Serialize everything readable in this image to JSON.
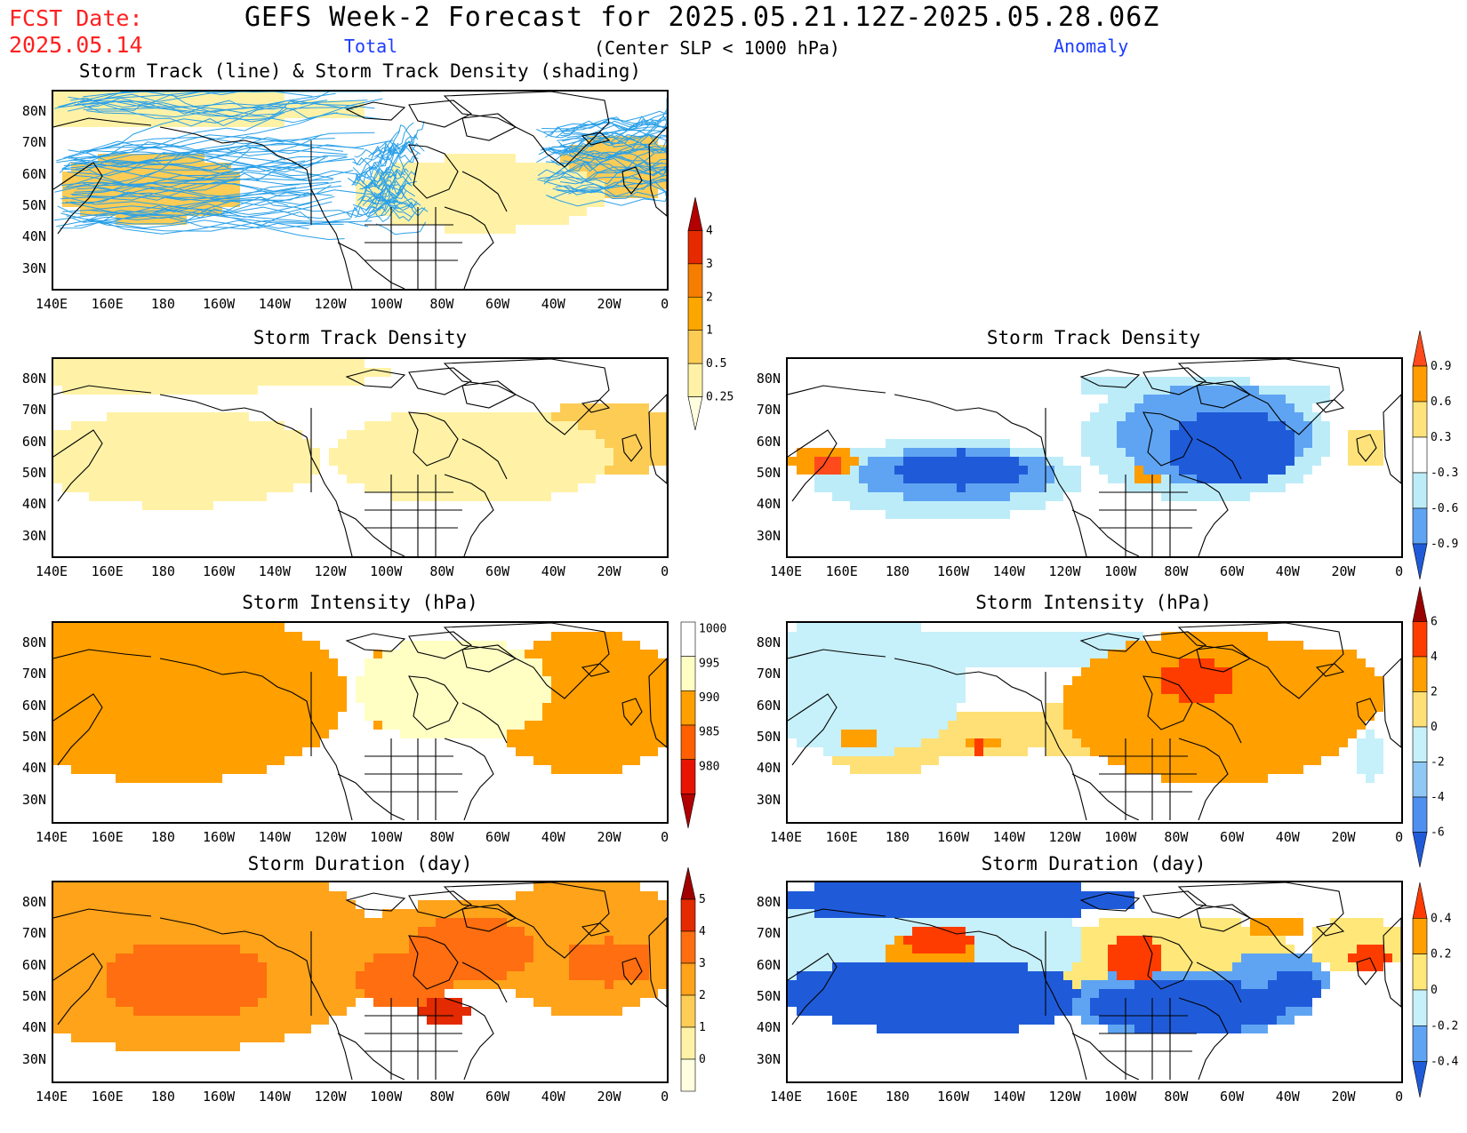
{
  "header": {
    "fcst_label": "FCST Date:",
    "fcst_date": "2025.05.14",
    "title": "GEFS Week-2 Forecast for 2025.05.21.12Z-2025.05.28.06Z",
    "criterion": "(Center SLP < 1000 hPa)",
    "total_label": "Total",
    "anomaly_label": "Anomaly"
  },
  "axes": {
    "lat_labels": [
      "80N",
      "70N",
      "60N",
      "50N",
      "40N",
      "30N"
    ],
    "lon_labels": [
      "140E",
      "160E",
      "180",
      "160W",
      "140W",
      "120W",
      "100W",
      "80W",
      "60W",
      "40W",
      "20W",
      "0"
    ]
  },
  "panels": {
    "track": {
      "title": "Storm Track (line) & Storm Track Density (shading)"
    },
    "density_total": {
      "title": "Storm Track Density"
    },
    "density_anom": {
      "title": "Storm Track Density"
    },
    "intensity_total": {
      "title": "Storm Intensity (hPa)"
    },
    "intensity_anom": {
      "title": "Storm Intensity (hPa)"
    },
    "duration_total": {
      "title": "Storm Duration (day)"
    },
    "duration_anom": {
      "title": "Storm Duration (day)"
    }
  },
  "colorbars": {
    "density_total": {
      "ticks": [
        "4",
        "3",
        "2",
        "1",
        "0.5",
        "0.25"
      ],
      "colors": [
        "#b20000",
        "#e52a00",
        "#f57e00",
        "#fca600",
        "#fccc55",
        "#fff2a6",
        "#ffffe0"
      ]
    },
    "density_anom": {
      "ticks": [
        "0.9",
        "0.6",
        "0.3",
        "-0.3",
        "-0.6",
        "-0.9"
      ],
      "colors": [
        "#ff4a1c",
        "#ff9d00",
        "#ffe37a",
        "#ffffff",
        "#bdecf9",
        "#5fa4f2",
        "#1f5bd9"
      ]
    },
    "intensity_total": {
      "ticks": [
        "1000",
        "995",
        "990",
        "985",
        "980"
      ],
      "colors": [
        "#ffffff",
        "#ffffc4",
        "#ff9f00",
        "#ff5f00",
        "#e61400",
        "#b00000"
      ]
    },
    "intensity_anom": {
      "ticks": [
        "6",
        "4",
        "2",
        "0",
        "-2",
        "-4",
        "-6"
      ],
      "colors": [
        "#990000",
        "#ff3c00",
        "#ff9f00",
        "#ffe077",
        "#c6f0fa",
        "#8fc8f5",
        "#4f8ff0",
        "#1f5bd9"
      ]
    },
    "duration_total": {
      "ticks": [
        "5",
        "4",
        "3",
        "2",
        "1",
        "0"
      ],
      "colors": [
        "#a00000",
        "#e32a00",
        "#ff6e10",
        "#ffa31a",
        "#ffcd55",
        "#fff2a6",
        "#ffffe0"
      ]
    },
    "duration_anom": {
      "ticks": [
        "0.4",
        "0.2",
        "0",
        "-0.2",
        "-0.4"
      ],
      "colors": [
        "#ff3c00",
        "#ff9f00",
        "#ffe77a",
        "#c6f0fa",
        "#5fa4f2",
        "#1f5bd9"
      ]
    }
  },
  "colors": {
    "track_line": "#2aa0e8",
    "coast": "#000000",
    "fcst_red": "#ff2020",
    "label_blue": "#1c3cff"
  }
}
